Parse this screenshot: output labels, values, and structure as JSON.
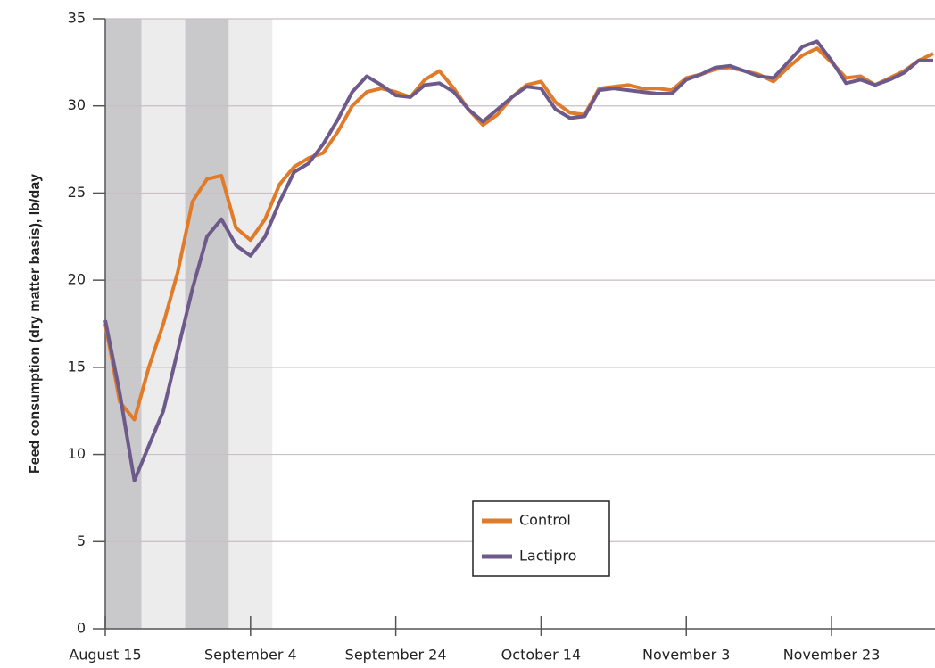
{
  "chart_data": {
    "type": "line",
    "y_label": "Feed consumption (dry matter basis), lb/day",
    "x": [
      "August 15",
      "August 17",
      "August 19",
      "August 21",
      "August 23",
      "August 25",
      "August 27",
      "August 29",
      "August 31",
      "September 2",
      "September 4",
      "September 6",
      "September 8",
      "September 10",
      "September 12",
      "September 14",
      "September 16",
      "September 18",
      "September 20",
      "September 22",
      "September 24",
      "September 26",
      "September 28",
      "September 30",
      "October 2",
      "October 4",
      "October 6",
      "October 8",
      "October 10",
      "October 12",
      "October 14",
      "October 16",
      "October 18",
      "October 20",
      "October 22",
      "October 24",
      "October 26",
      "October 28",
      "October 30",
      "November 1",
      "November 3",
      "November 5",
      "November 7",
      "November 9",
      "November 11",
      "November 13",
      "November 15",
      "November 17",
      "November 19",
      "November 21",
      "November 23",
      "November 25",
      "November 27",
      "November 29",
      "December 1",
      "December 3",
      "December 5",
      "December 7"
    ],
    "series": [
      {
        "name": "Control",
        "color": "#e07b2a",
        "values": [
          17.5,
          13,
          12,
          15,
          17.5,
          20.5,
          24.5,
          25.8,
          26,
          23,
          22.3,
          23.5,
          25.5,
          26.5,
          27,
          27.3,
          28.5,
          30,
          30.8,
          31,
          30.8,
          30.5,
          31.5,
          32,
          31,
          29.8,
          28.9,
          29.5,
          30.5,
          31.2,
          31.4,
          30.2,
          29.6,
          29.5,
          31,
          31.1,
          31.2,
          31,
          31,
          30.9,
          31.6,
          31.8,
          32.1,
          32.2,
          32,
          31.8,
          31.4,
          32.2,
          32.9,
          33.3,
          32.5,
          31.6,
          31.7,
          31.2,
          31.6,
          32,
          32.6,
          33
        ]
      },
      {
        "name": "Lactipro",
        "color": "#6e5a8a",
        "values": [
          17.7,
          13.5,
          8.5,
          10.5,
          12.5,
          16,
          19.5,
          22.5,
          23.5,
          22,
          21.4,
          22.5,
          24.5,
          26.2,
          26.7,
          27.8,
          29.2,
          30.8,
          31.7,
          31.2,
          30.6,
          30.5,
          31.2,
          31.3,
          30.8,
          29.8,
          29.1,
          29.8,
          30.5,
          31.1,
          31,
          29.8,
          29.3,
          29.4,
          30.9,
          31,
          30.9,
          30.8,
          30.7,
          30.7,
          31.5,
          31.8,
          32.2,
          32.3,
          32,
          31.7,
          31.6,
          32.5,
          33.4,
          33.7,
          32.6,
          31.3,
          31.5,
          31.2,
          31.5,
          31.9,
          32.6,
          32.6
        ]
      }
    ],
    "shaded_periods": [
      {
        "start": "August 15",
        "end": "August 20",
        "color": "#c9c9cb"
      },
      {
        "start": "August 20",
        "end": "August 26",
        "color": "#ececec"
      },
      {
        "start": "August 26",
        "end": "September 1",
        "color": "#c9c9cb"
      },
      {
        "start": "September 1",
        "end": "September 7",
        "color": "#ececec"
      }
    ],
    "xlim": [
      "August 15",
      "December 7"
    ],
    "xticks": [
      "August 15",
      "September 4",
      "September 24",
      "October 14",
      "November 3",
      "November 23"
    ],
    "ylim": [
      0,
      35
    ],
    "yticks": [
      0,
      5,
      10,
      15,
      20,
      25,
      30,
      35
    ],
    "grid": true,
    "legend_position": "center"
  }
}
